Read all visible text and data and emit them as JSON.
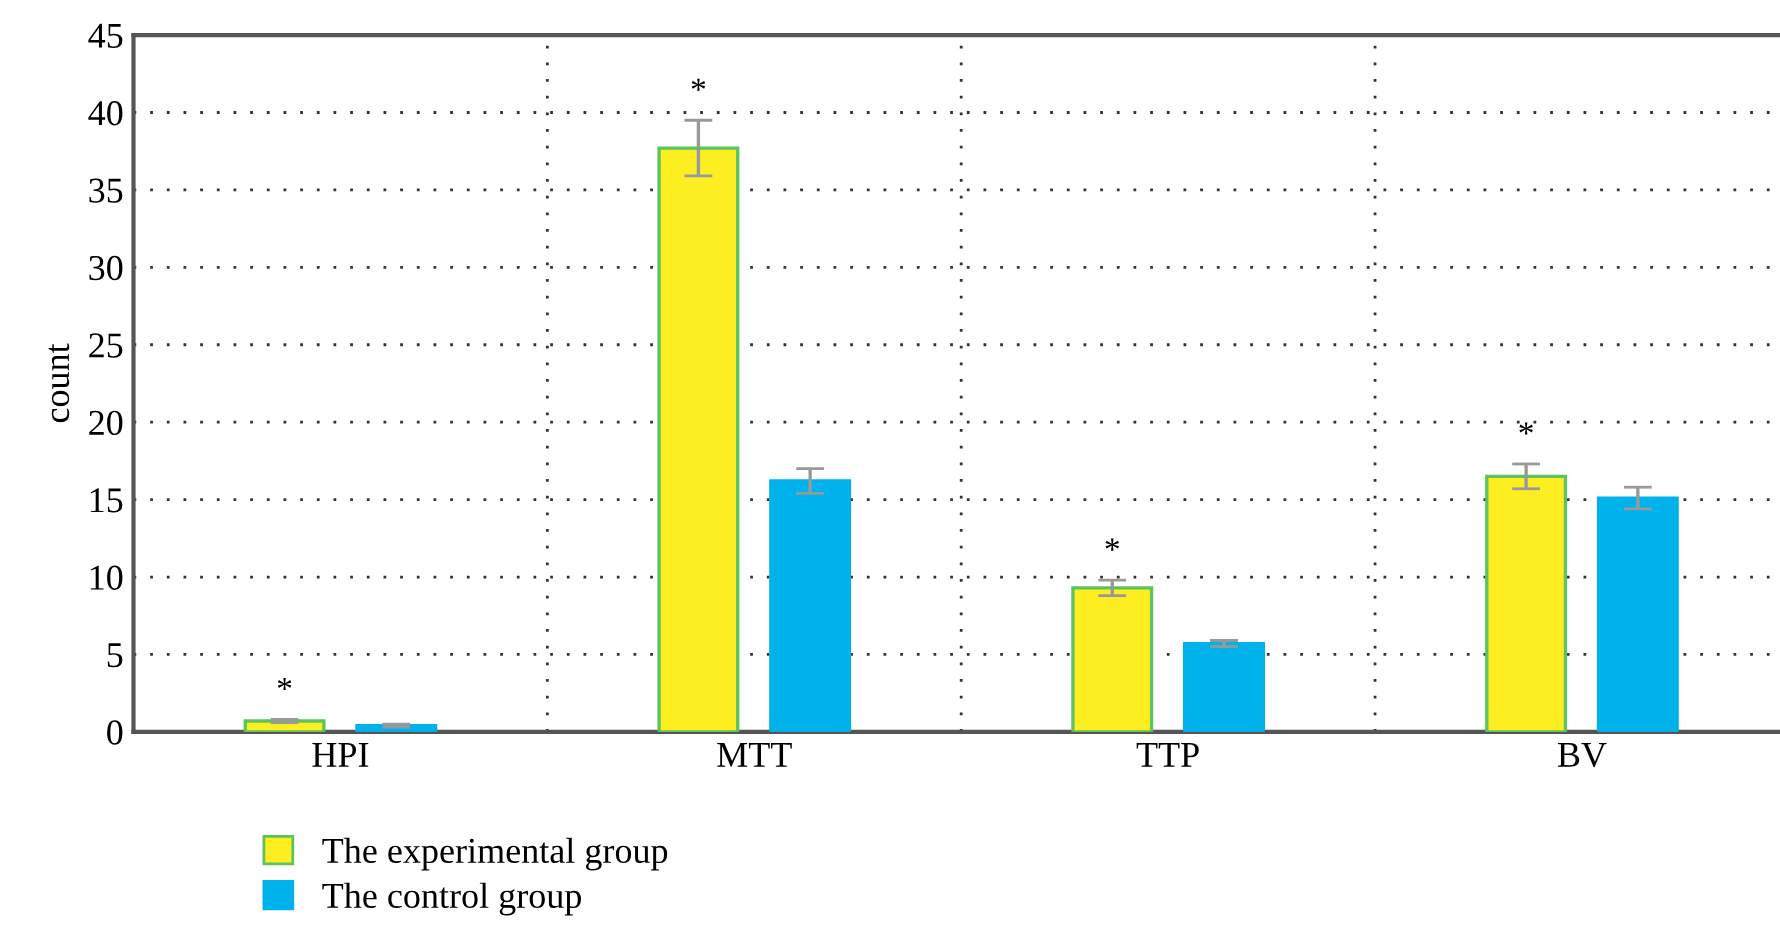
{
  "chart_data": {
    "type": "bar",
    "ylabel": "count",
    "categories": [
      "HPI",
      "MTT",
      "TTP",
      "BV"
    ],
    "series": [
      {
        "name": "The experimental group",
        "color": "#fcee21",
        "values": [
          0.7,
          37.7,
          9.3,
          16.5
        ],
        "errors": [
          0.1,
          1.8,
          0.5,
          0.8
        ]
      },
      {
        "name": "The control group",
        "color": "#00b2ec",
        "values": [
          0.4,
          16.2,
          5.7,
          15.1
        ],
        "errors": [
          0.1,
          0.8,
          0.2,
          0.7
        ]
      }
    ],
    "ylim": [
      0,
      45
    ],
    "yticks": [
      0,
      5,
      10,
      15,
      20,
      25,
      30,
      35,
      40,
      45
    ],
    "grid": true,
    "legend": "bottom left",
    "annotations": [
      "*",
      "*",
      "*",
      "*"
    ]
  }
}
